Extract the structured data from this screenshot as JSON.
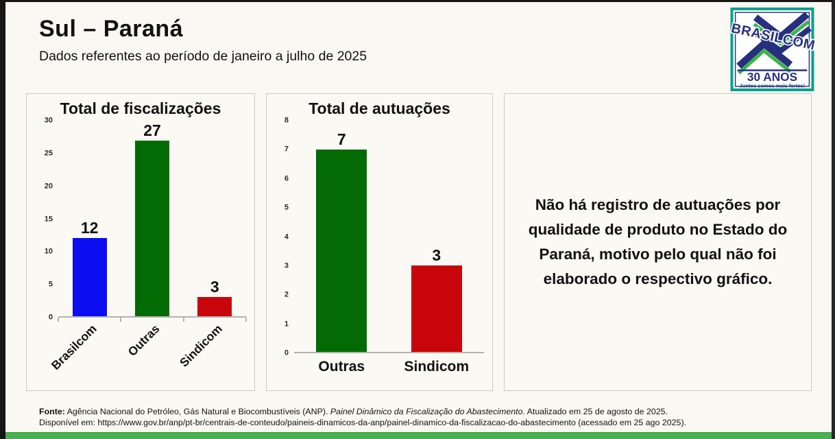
{
  "header": {
    "title": "Sul – Paraná",
    "subtitle": "Dados referentes ao período de janeiro a julho de 2025"
  },
  "logo": {
    "brand": "BRASILCOM",
    "anniversary": "30 ANOS",
    "tagline": "Juntos somos mais fortes!"
  },
  "note": "Não há registro de autuações por qualidade de produto no Estado do Paraná, motivo pelo qual não foi elaborado o respectivo gráfico.",
  "footer": {
    "line1_label": "Fonte:",
    "line1_text": " Agência Nacional do Petróleo, Gás Natural e Biocombustíveis (ANP). ",
    "line1_italic": "Painel Dinâmico da Fiscalização do Abastecimento",
    "line1_tail": ". Atualizado em 25 de agosto de 2025.",
    "line2": "Disponível em: https://www.gov.br/anp/pt-br/centrais-de-conteudo/paineis-dinamicos-da-anp/painel-dinamico-da-fiscalizacao-do-abastecimento (acessado em 25 ago 2025)."
  },
  "colors": {
    "bar_blue": "#0d0df2",
    "bar_green": "#046b04",
    "bar_red": "#c9050c",
    "bottom_strip": "#47b04f",
    "logo_navy": "#27307e",
    "logo_green": "#3bb54a",
    "logo_teal": "#0ba18b"
  },
  "chart_data": [
    {
      "type": "bar",
      "title": "Total de fiscalizações",
      "categories": [
        "Brasilcom",
        "Outras",
        "Sindicom"
      ],
      "values": [
        12,
        27,
        3
      ],
      "bar_colors": [
        "#0d0df2",
        "#046b04",
        "#c9050c"
      ],
      "ylim": [
        0,
        30
      ],
      "yticks": [
        0,
        5,
        10,
        15,
        20,
        25,
        30
      ],
      "grid": false,
      "legend": "none",
      "rotated_xlabels": true,
      "baseline_ticks": true
    },
    {
      "type": "bar",
      "title": "Total de autuações",
      "categories": [
        "Outras",
        "Sindicom"
      ],
      "values": [
        7,
        3
      ],
      "bar_colors": [
        "#046b04",
        "#c9050c"
      ],
      "ylim": [
        0,
        8
      ],
      "yticks": [
        0,
        1,
        2,
        3,
        4,
        5,
        6,
        7,
        8
      ],
      "grid": false,
      "legend": "none",
      "rotated_xlabels": false,
      "baseline_ticks": false
    }
  ]
}
